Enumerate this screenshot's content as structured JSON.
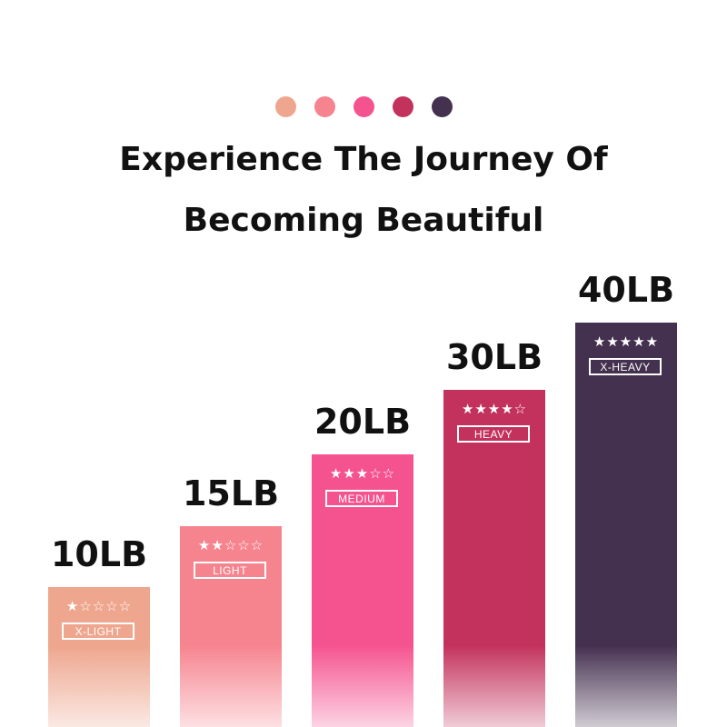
{
  "header": {
    "dots": [
      "#eea68e",
      "#f6848f",
      "#f5538f",
      "#c3325c",
      "#44304f"
    ],
    "title_line1": "Experience The Journey Of",
    "title_line2": "Becoming Beautiful"
  },
  "bands": [
    {
      "weight": "10LB",
      "level": "X-LIGHT",
      "stars_filled": 1,
      "stars_total": 5,
      "color": "#eea68e"
    },
    {
      "weight": "15LB",
      "level": "LIGHT",
      "stars_filled": 2,
      "stars_total": 5,
      "color": "#f6848f"
    },
    {
      "weight": "20LB",
      "level": "MEDIUM",
      "stars_filled": 3,
      "stars_total": 5,
      "color": "#f5538f"
    },
    {
      "weight": "30LB",
      "level": "HEAVY",
      "stars_filled": 4,
      "stars_total": 5,
      "color": "#c3325c"
    },
    {
      "weight": "40LB",
      "level": "X-HEAVY",
      "stars_filled": 5,
      "stars_total": 5,
      "color": "#44304f"
    }
  ]
}
